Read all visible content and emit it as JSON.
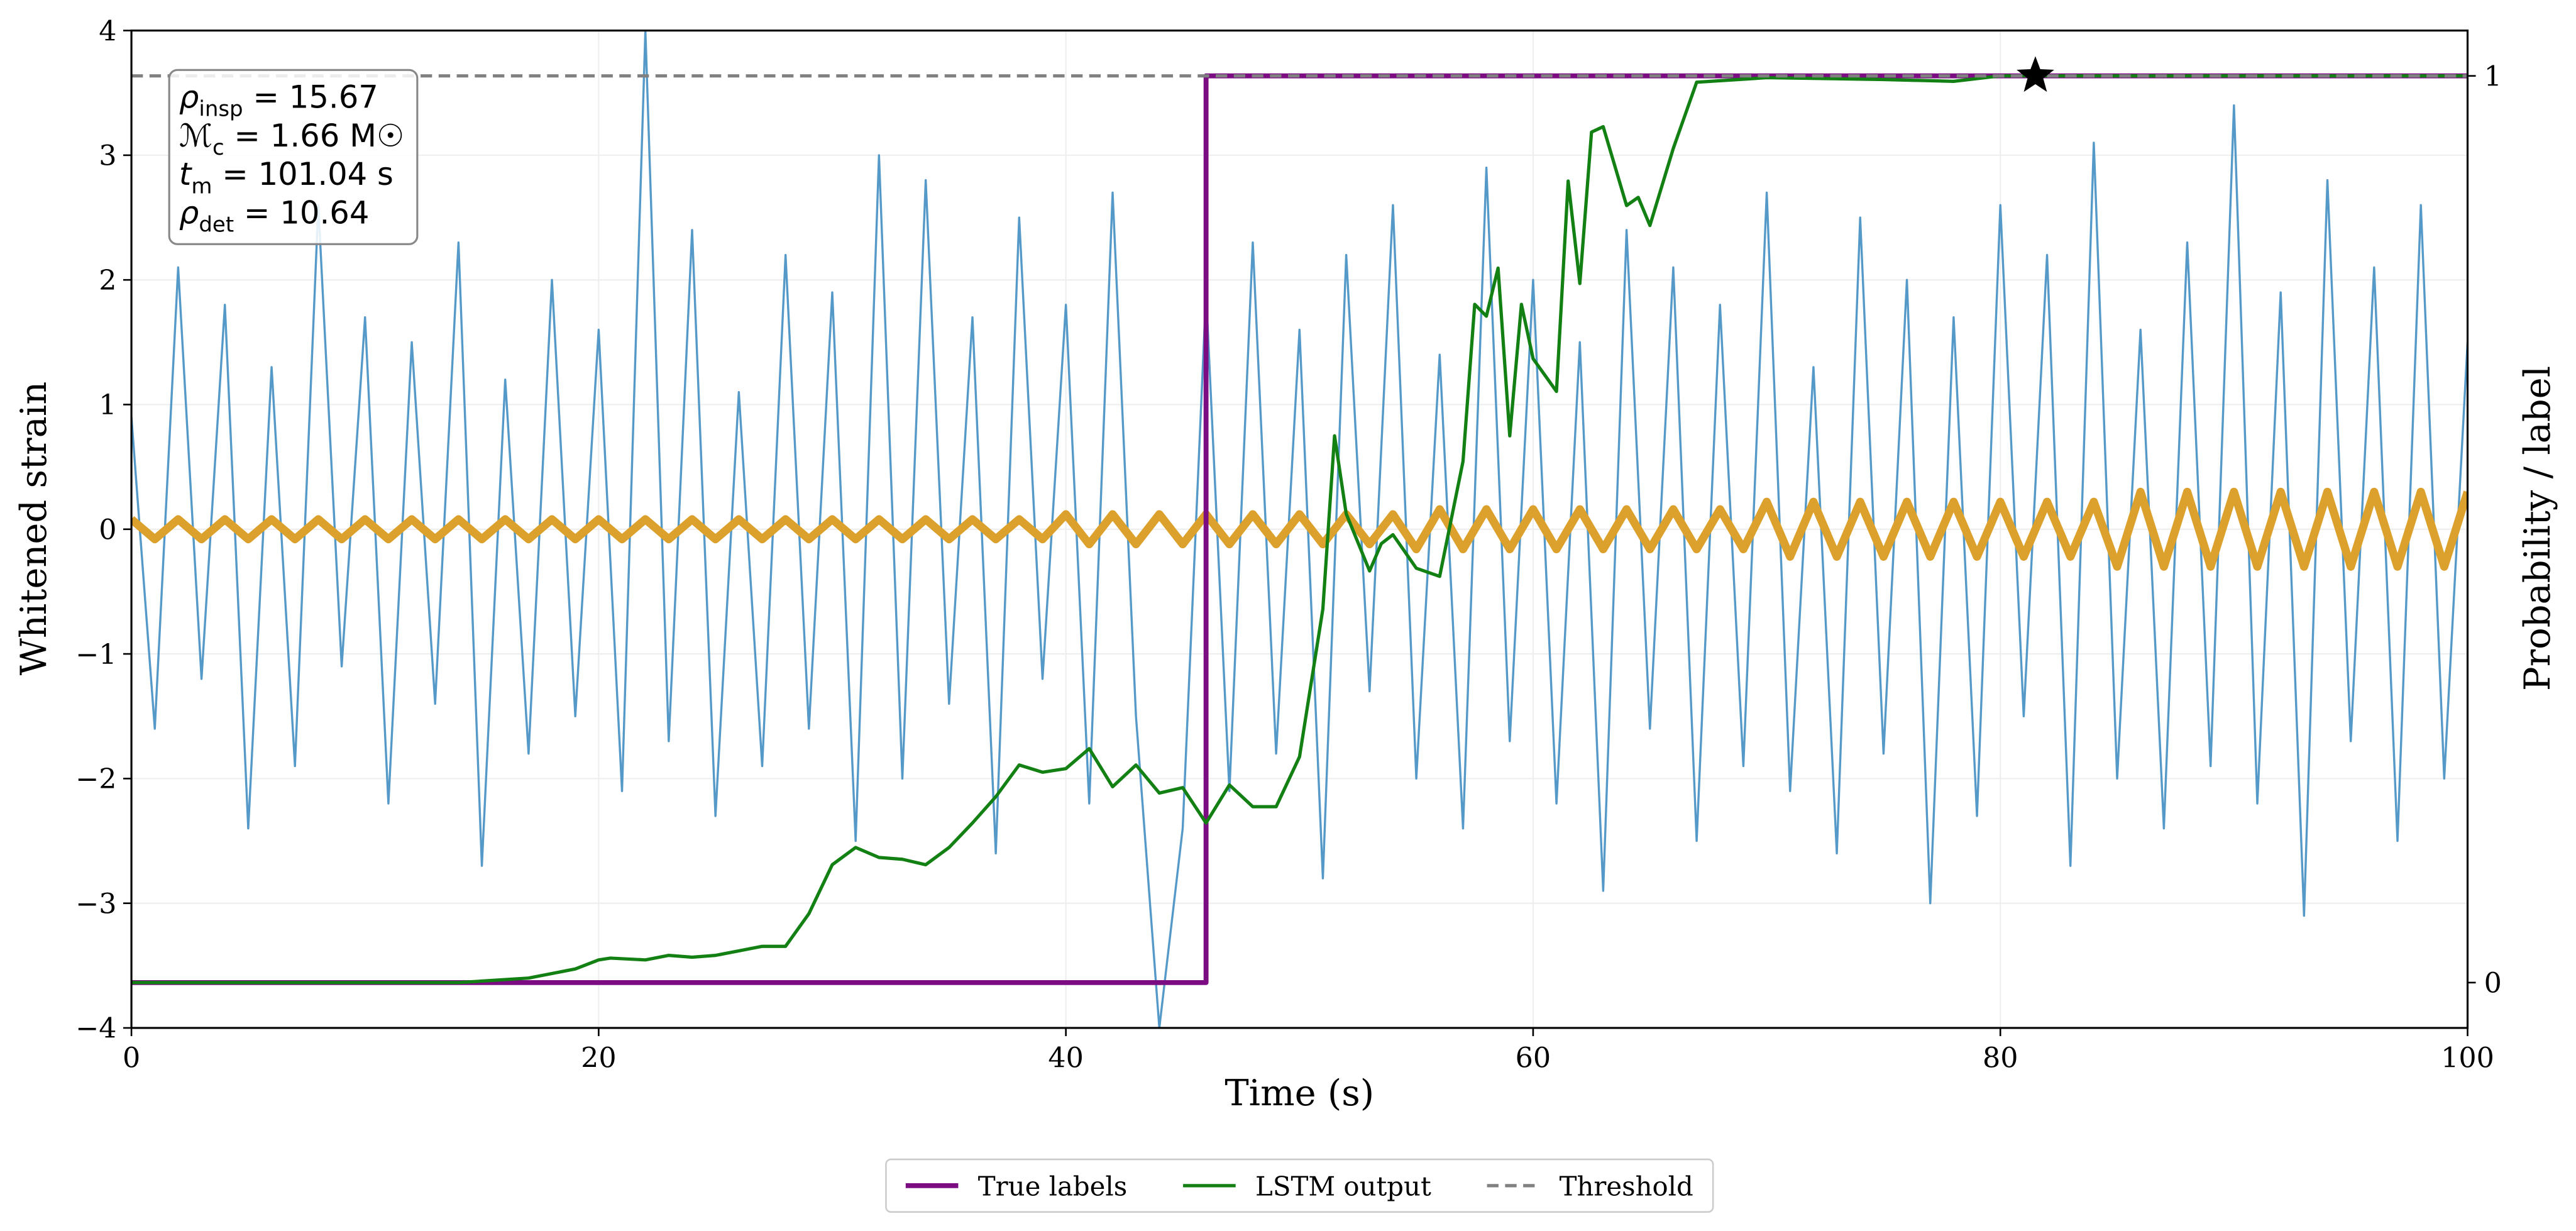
{
  "chart_data": {
    "type": "line",
    "x_label": "Time (s)",
    "y_label": "Whitened strain",
    "y2_label": "Probability / label",
    "xlim": [
      0,
      100
    ],
    "xticks": [
      0,
      20,
      40,
      60,
      80,
      100
    ],
    "ylim": [
      -4,
      4
    ],
    "yticks": [
      {
        "value": -4,
        "label": "−4"
      },
      {
        "value": -3,
        "label": "−3"
      },
      {
        "value": -2,
        "label": "−2"
      },
      {
        "value": -1,
        "label": "−1"
      },
      0,
      1,
      2,
      3,
      4
    ],
    "y2lim": [
      -0.05,
      1.05
    ],
    "y2ticks": [
      0,
      1
    ],
    "grid": true,
    "legend": "bottom",
    "x": [
      0,
      1,
      2,
      3,
      4,
      5,
      6,
      7,
      8,
      9,
      10,
      11,
      12,
      13,
      14,
      15,
      16,
      17,
      18,
      19,
      20,
      21,
      22,
      23,
      24,
      25,
      26,
      27,
      28,
      29,
      30,
      31,
      32,
      33,
      34,
      35,
      36,
      37,
      38,
      39,
      40,
      41,
      42,
      43,
      44,
      45,
      46,
      47,
      48,
      49,
      50,
      51,
      52,
      53,
      54,
      55,
      56,
      57,
      58,
      59,
      60,
      61,
      62,
      63,
      64,
      65,
      66,
      67,
      68,
      69,
      70,
      71,
      72,
      73,
      74,
      75,
      76,
      77,
      78,
      79,
      80,
      81,
      82,
      83,
      84,
      85,
      86,
      87,
      88,
      89,
      90,
      91,
      92,
      93,
      94,
      95,
      96,
      97,
      98,
      99,
      100
    ],
    "series": [
      {
        "color": "#5599c8",
        "width": 1.3,
        "values": [
          0.9,
          -1.6,
          2.1,
          -1.2,
          1.8,
          -2.4,
          1.3,
          -1.9,
          2.6,
          -1.1,
          1.7,
          -2.2,
          1.5,
          -1.4,
          2.3,
          -2.7,
          1.2,
          -1.8,
          2.0,
          -1.5,
          1.6,
          -2.1,
          4.0,
          -1.7,
          2.4,
          -2.3,
          1.1,
          -1.9,
          2.2,
          -1.6,
          1.9,
          -2.5,
          3.0,
          -2.0,
          2.8,
          -1.4,
          1.7,
          -2.6,
          2.5,
          -1.2,
          1.8,
          -2.2,
          2.7,
          -1.5,
          -4.0,
          -2.4,
          1.9,
          -2.1,
          2.3,
          -1.8,
          1.6,
          -2.8,
          2.2,
          -1.3,
          2.6,
          -2.0,
          1.4,
          -2.4,
          2.9,
          -1.7,
          2.0,
          -2.2,
          1.5,
          -2.9,
          2.4,
          -1.6,
          2.1,
          -2.5,
          1.8,
          -1.9,
          2.7,
          -2.1,
          1.3,
          -2.6,
          2.5,
          -1.8,
          2.0,
          -3.0,
          1.7,
          -2.3,
          2.6,
          -1.5,
          2.2,
          -2.7,
          3.1,
          -2.0,
          1.6,
          -2.4,
          2.3,
          -1.9,
          3.4,
          -2.2,
          1.9,
          -3.1,
          2.8,
          -1.7,
          2.1,
          -2.5,
          2.6,
          -2.0,
          1.5
        ]
      },
      {
        "color": "#dca12c",
        "width": 5,
        "values": [
          0.08,
          -0.08,
          0.08,
          -0.08,
          0.08,
          -0.08,
          0.08,
          -0.08,
          0.08,
          -0.08,
          0.08,
          -0.08,
          0.08,
          -0.08,
          0.08,
          -0.08,
          0.08,
          -0.08,
          0.08,
          -0.08,
          0.08,
          -0.08,
          0.08,
          -0.08,
          0.08,
          -0.08,
          0.08,
          -0.08,
          0.08,
          -0.08,
          0.08,
          -0.08,
          0.08,
          -0.08,
          0.08,
          -0.08,
          0.08,
          -0.08,
          0.08,
          -0.08,
          0.12,
          -0.12,
          0.12,
          -0.12,
          0.12,
          -0.12,
          0.12,
          -0.12,
          0.12,
          -0.12,
          0.12,
          -0.12,
          0.12,
          -0.12,
          0.12,
          -0.16,
          0.16,
          -0.16,
          0.16,
          -0.16,
          0.16,
          -0.16,
          0.16,
          -0.16,
          0.16,
          -0.16,
          0.16,
          -0.16,
          0.16,
          -0.16,
          0.22,
          -0.22,
          0.22,
          -0.22,
          0.22,
          -0.22,
          0.22,
          -0.22,
          0.22,
          -0.22,
          0.22,
          -0.22,
          0.22,
          -0.22,
          0.22,
          -0.3,
          0.3,
          -0.3,
          0.3,
          -0.3,
          0.3,
          -0.3,
          0.3,
          -0.3,
          0.3,
          -0.3,
          0.3,
          -0.3,
          0.3,
          -0.3,
          0.3
        ]
      },
      {
        "name": "True labels",
        "color": "#7b0c82",
        "width": 3,
        "axis": "y2",
        "x": [
          0,
          46,
          46,
          100
        ],
        "values": [
          0,
          0,
          1,
          1
        ]
      },
      {
        "name": "LSTM output",
        "color": "#138013",
        "width": 2,
        "axis": "y2",
        "x": [
          0,
          14,
          17,
          19,
          20,
          20.5,
          22,
          23,
          24,
          25,
          26,
          27,
          28,
          28.5,
          29,
          30,
          31,
          32,
          33,
          34,
          35,
          36,
          37,
          38,
          39,
          40,
          41,
          42,
          43,
          44,
          45,
          46,
          47,
          48,
          49,
          50,
          51,
          51.5,
          52,
          53,
          53.5,
          54,
          55,
          56,
          57,
          57.5,
          58,
          58.5,
          59,
          59.5,
          60,
          61,
          61.5,
          62,
          62.5,
          63,
          64,
          64.5,
          65,
          66,
          67,
          70,
          75,
          78,
          80,
          85,
          90,
          95,
          100
        ],
        "values": [
          0,
          0,
          0.005,
          0.015,
          0.025,
          0.027,
          0.025,
          0.03,
          0.028,
          0.03,
          0.035,
          0.04,
          0.04,
          0.058,
          0.076,
          0.13,
          0.149,
          0.138,
          0.136,
          0.13,
          0.149,
          0.176,
          0.205,
          0.24,
          0.232,
          0.236,
          0.258,
          0.216,
          0.24,
          0.209,
          0.215,
          0.176,
          0.218,
          0.194,
          0.194,
          0.249,
          0.412,
          0.603,
          0.517,
          0.454,
          0.484,
          0.494,
          0.457,
          0.448,
          0.575,
          0.748,
          0.735,
          0.788,
          0.603,
          0.748,
          0.688,
          0.652,
          0.884,
          0.771,
          0.938,
          0.944,
          0.857,
          0.866,
          0.835,
          0.92,
          0.993,
          0.998,
          0.996,
          0.994,
          1,
          1,
          1,
          1,
          1
        ]
      },
      {
        "name": "Threshold",
        "color": "#808080",
        "width": 2,
        "dashed": true,
        "axis": "y2",
        "x": [
          0,
          100
        ],
        "values": [
          1,
          1
        ]
      }
    ],
    "markers": [
      {
        "x": 81.5,
        "y": 1,
        "axis": "y2",
        "color": "#000000"
      }
    ],
    "annotation": [
      {
        "main": "ρ",
        "sub": "insp",
        "rest": " = 15.67"
      },
      {
        "main": "ℳ",
        "sub": "c",
        "rest": " = 1.66 M☉"
      },
      {
        "main": "t",
        "sub": "m",
        "rest": " = 101.04 s"
      },
      {
        "main": "ρ",
        "sub": "det",
        "rest": " = 10.64"
      }
    ]
  }
}
